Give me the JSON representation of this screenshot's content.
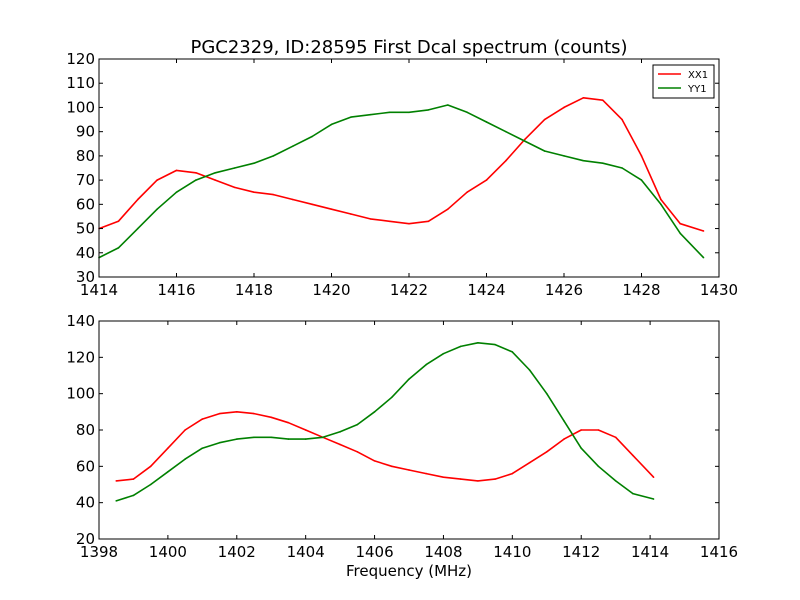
{
  "chart_data": [
    {
      "type": "line",
      "title": "PGC2329, ID:28595 First Dcal spectrum (counts)",
      "xlabel": "",
      "ylabel": "",
      "xlim": [
        1414,
        1430
      ],
      "ylim": [
        30,
        120
      ],
      "xticks": [
        1414,
        1416,
        1418,
        1420,
        1422,
        1424,
        1426,
        1428,
        1430
      ],
      "yticks": [
        30,
        40,
        50,
        60,
        70,
        80,
        90,
        100,
        110,
        120
      ],
      "legend": "top-right",
      "grid": false,
      "series": [
        {
          "name": "XX1",
          "color": "#ff0000",
          "x": [
            1414.0,
            1414.5,
            1415.0,
            1415.5,
            1416.0,
            1416.5,
            1417.0,
            1417.5,
            1418.0,
            1418.5,
            1419.0,
            1419.5,
            1420.0,
            1420.5,
            1421.0,
            1421.5,
            1422.0,
            1422.5,
            1423.0,
            1423.5,
            1424.0,
            1424.5,
            1425.0,
            1425.5,
            1426.0,
            1426.5,
            1427.0,
            1427.5,
            1428.0,
            1428.5,
            1429.0,
            1429.6
          ],
          "y": [
            50,
            53,
            62,
            70,
            74,
            73,
            70,
            67,
            65,
            64,
            62,
            60,
            58,
            56,
            54,
            53,
            52,
            53,
            58,
            65,
            70,
            78,
            87,
            95,
            100,
            104,
            103,
            95,
            80,
            62,
            52,
            49
          ]
        },
        {
          "name": "YY1",
          "color": "#008000",
          "x": [
            1414.0,
            1414.5,
            1415.0,
            1415.5,
            1416.0,
            1416.5,
            1417.0,
            1417.5,
            1418.0,
            1418.5,
            1419.0,
            1419.5,
            1420.0,
            1420.5,
            1421.0,
            1421.5,
            1422.0,
            1422.5,
            1423.0,
            1423.5,
            1424.0,
            1424.5,
            1425.0,
            1425.5,
            1426.0,
            1426.5,
            1427.0,
            1427.5,
            1428.0,
            1428.5,
            1429.0,
            1429.6
          ],
          "y": [
            38,
            42,
            50,
            58,
            65,
            70,
            73,
            75,
            77,
            80,
            84,
            88,
            93,
            96,
            97,
            98,
            98,
            99,
            101,
            98,
            94,
            90,
            86,
            82,
            80,
            78,
            77,
            75,
            70,
            60,
            48,
            38
          ]
        }
      ]
    },
    {
      "type": "line",
      "title": "",
      "xlabel": "Frequency (MHz)",
      "ylabel": "",
      "xlim": [
        1398,
        1416
      ],
      "ylim": [
        20,
        140
      ],
      "xticks": [
        1398,
        1400,
        1402,
        1404,
        1406,
        1408,
        1410,
        1412,
        1414,
        1416
      ],
      "yticks": [
        20,
        40,
        60,
        80,
        100,
        120,
        140
      ],
      "legend": "none",
      "grid": false,
      "series": [
        {
          "name": "XX1",
          "color": "#ff0000",
          "x": [
            1398.5,
            1399.0,
            1399.5,
            1400.0,
            1400.5,
            1401.0,
            1401.5,
            1402.0,
            1402.5,
            1403.0,
            1403.5,
            1404.0,
            1404.5,
            1405.0,
            1405.5,
            1406.0,
            1406.5,
            1407.0,
            1407.5,
            1408.0,
            1408.5,
            1409.0,
            1409.5,
            1410.0,
            1410.5,
            1411.0,
            1411.5,
            1412.0,
            1412.5,
            1413.0,
            1413.5,
            1414.1
          ],
          "y": [
            52,
            53,
            60,
            70,
            80,
            86,
            89,
            90,
            89,
            87,
            84,
            80,
            76,
            72,
            68,
            63,
            60,
            58,
            56,
            54,
            53,
            52,
            53,
            56,
            62,
            68,
            75,
            80,
            80,
            76,
            66,
            54
          ]
        },
        {
          "name": "YY1",
          "color": "#008000",
          "x": [
            1398.5,
            1399.0,
            1399.5,
            1400.0,
            1400.5,
            1401.0,
            1401.5,
            1402.0,
            1402.5,
            1403.0,
            1403.5,
            1404.0,
            1404.5,
            1405.0,
            1405.5,
            1406.0,
            1406.5,
            1407.0,
            1407.5,
            1408.0,
            1408.5,
            1409.0,
            1409.5,
            1410.0,
            1410.5,
            1411.0,
            1411.5,
            1412.0,
            1412.5,
            1413.0,
            1413.5,
            1414.1
          ],
          "y": [
            41,
            44,
            50,
            57,
            64,
            70,
            73,
            75,
            76,
            76,
            75,
            75,
            76,
            79,
            83,
            90,
            98,
            108,
            116,
            122,
            126,
            128,
            127,
            123,
            113,
            100,
            85,
            70,
            60,
            52,
            45,
            42
          ]
        }
      ]
    }
  ]
}
